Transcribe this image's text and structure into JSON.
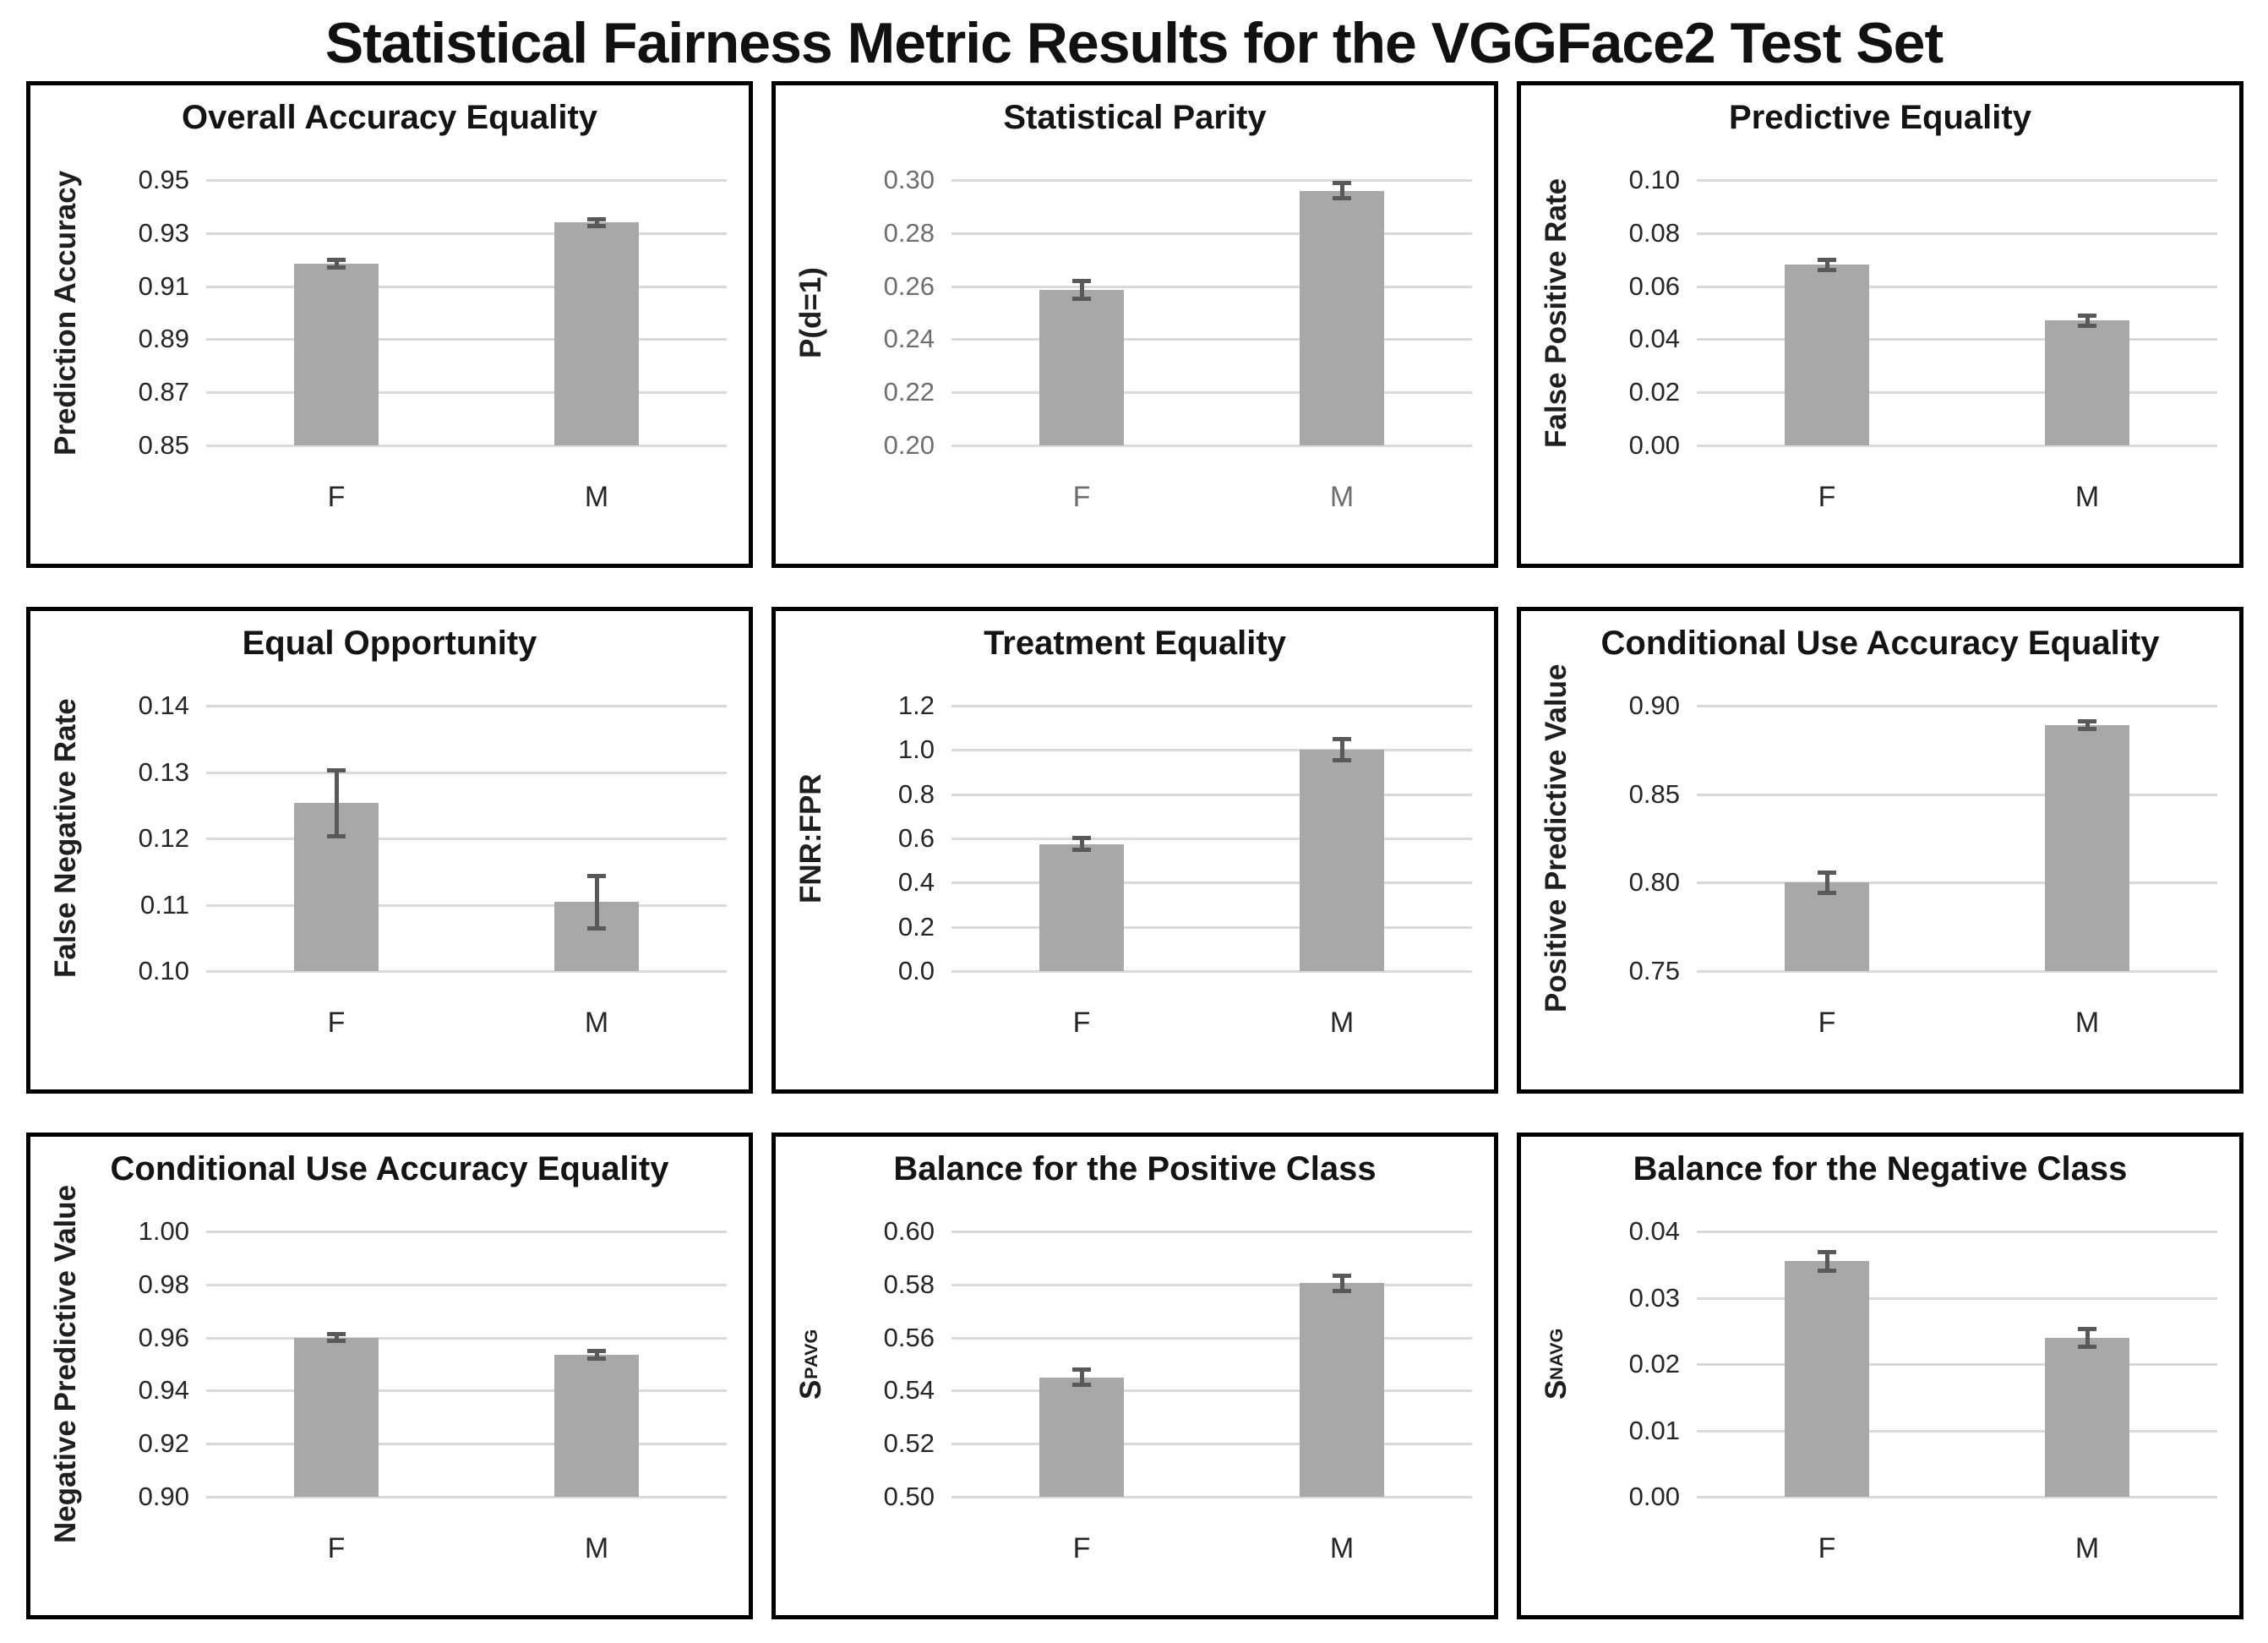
{
  "page_title": "Statistical Fairness Metric Results for the VGGFace2 Test Set",
  "colors": {
    "bar": "#a8a8a8",
    "error_bar": "#595959",
    "gridline": "#d9d9d9",
    "panel_border": "#000000",
    "text_default": "#262626",
    "text_gray": "#6e6e6e"
  },
  "chart_data": [
    {
      "type": "bar",
      "title": "Overall Accuracy Equality",
      "ylabel": "Prediction Accuracy",
      "categories": [
        "F",
        "M"
      ],
      "values": [
        0.9185,
        0.934
      ],
      "errors": [
        0.0015,
        0.0015
      ],
      "ylim": [
        0.85,
        0.95
      ],
      "yticks": [
        0.85,
        0.87,
        0.89,
        0.91,
        0.93,
        0.95
      ],
      "ytick_labels": [
        "0.85",
        "0.87",
        "0.89",
        "0.91",
        "0.93",
        "0.95"
      ],
      "grid": true,
      "legend": "none",
      "axis_text_color": "default"
    },
    {
      "type": "bar",
      "title": "Statistical Parity",
      "ylabel": "P(d=1)",
      "categories": [
        "F",
        "M"
      ],
      "values": [
        0.2585,
        0.296
      ],
      "errors": [
        0.0035,
        0.003
      ],
      "ylim": [
        0.2,
        0.3
      ],
      "yticks": [
        0.2,
        0.22,
        0.24,
        0.26,
        0.28,
        0.3
      ],
      "ytick_labels": [
        "0.20",
        "0.22",
        "0.24",
        "0.26",
        "0.28",
        "0.30"
      ],
      "grid": true,
      "legend": "none",
      "axis_text_color": "gray"
    },
    {
      "type": "bar",
      "title": "Predictive Equality",
      "ylabel": "False Positive Rate",
      "categories": [
        "F",
        "M"
      ],
      "values": [
        0.068,
        0.047
      ],
      "errors": [
        0.002,
        0.002
      ],
      "ylim": [
        0.0,
        0.1
      ],
      "yticks": [
        0.0,
        0.02,
        0.04,
        0.06,
        0.08,
        0.1
      ],
      "ytick_labels": [
        "0.00",
        "0.02",
        "0.04",
        "0.06",
        "0.08",
        "0.10"
      ],
      "grid": true,
      "legend": "none",
      "axis_text_color": "default"
    },
    {
      "type": "bar",
      "title": "Equal Opportunity",
      "ylabel": "False Negative Rate",
      "categories": [
        "F",
        "M"
      ],
      "values": [
        0.1253,
        0.1104
      ],
      "errors": [
        0.005,
        0.004
      ],
      "ylim": [
        0.1,
        0.14
      ],
      "yticks": [
        0.1,
        0.11,
        0.12,
        0.13,
        0.14
      ],
      "ytick_labels": [
        "0.10",
        "0.11",
        "0.12",
        "0.13",
        "0.14"
      ],
      "grid": true,
      "legend": "none",
      "axis_text_color": "default"
    },
    {
      "type": "bar",
      "title": "Treatment Equality",
      "ylabel": "FNR:FPR",
      "categories": [
        "F",
        "M"
      ],
      "values": [
        0.575,
        1.0
      ],
      "errors": [
        0.03,
        0.05
      ],
      "ylim": [
        0.0,
        1.2
      ],
      "yticks": [
        0.0,
        0.2,
        0.4,
        0.6,
        0.8,
        1.0,
        1.2
      ],
      "ytick_labels": [
        "0.0",
        "0.2",
        "0.4",
        "0.6",
        "0.8",
        "1.0",
        "1.2"
      ],
      "grid": true,
      "legend": "none",
      "axis_text_color": "default"
    },
    {
      "type": "bar",
      "title": "Conditional Use Accuracy Equality",
      "ylabel": "Positive Predictive Value",
      "categories": [
        "F",
        "M"
      ],
      "values": [
        0.8,
        0.889
      ],
      "errors": [
        0.006,
        0.0025
      ],
      "ylim": [
        0.75,
        0.9
      ],
      "yticks": [
        0.75,
        0.8,
        0.85,
        0.9
      ],
      "ytick_labels": [
        "0.75",
        "0.80",
        "0.85",
        "0.90"
      ],
      "grid": true,
      "legend": "none",
      "axis_text_color": "default"
    },
    {
      "type": "bar",
      "title": "Conditional Use Accuracy Equality",
      "ylabel": "Negative Predictive Value",
      "categories": [
        "F",
        "M"
      ],
      "values": [
        0.96,
        0.9535
      ],
      "errors": [
        0.0015,
        0.0015
      ],
      "ylim": [
        0.9,
        1.0
      ],
      "yticks": [
        0.9,
        0.92,
        0.94,
        0.96,
        0.98,
        1.0
      ],
      "ytick_labels": [
        "0.90",
        "0.92",
        "0.94",
        "0.96",
        "0.98",
        "1.00"
      ],
      "grid": true,
      "legend": "none",
      "axis_text_color": "default"
    },
    {
      "type": "bar",
      "title": "Balance for the Positive Class",
      "ylabel": "S",
      "ylabel_sup": "P",
      "ylabel_sub": "AVG",
      "categories": [
        "F",
        "M"
      ],
      "values": [
        0.545,
        0.5805
      ],
      "errors": [
        0.003,
        0.003
      ],
      "ylim": [
        0.5,
        0.6
      ],
      "yticks": [
        0.5,
        0.52,
        0.54,
        0.56,
        0.58,
        0.6
      ],
      "ytick_labels": [
        "0.50",
        "0.52",
        "0.54",
        "0.56",
        "0.58",
        "0.60"
      ],
      "grid": true,
      "legend": "none",
      "axis_text_color": "default"
    },
    {
      "type": "bar",
      "title": "Balance for the Negative Class",
      "ylabel": "S",
      "ylabel_sup": "N",
      "ylabel_sub": "AVG",
      "categories": [
        "F",
        "M"
      ],
      "values": [
        0.0355,
        0.024
      ],
      "errors": [
        0.0015,
        0.0014
      ],
      "ylim": [
        0.0,
        0.04
      ],
      "yticks": [
        0.0,
        0.01,
        0.02,
        0.03,
        0.04
      ],
      "ytick_labels": [
        "0.00",
        "0.01",
        "0.02",
        "0.03",
        "0.04"
      ],
      "grid": true,
      "legend": "none",
      "axis_text_color": "default"
    }
  ]
}
